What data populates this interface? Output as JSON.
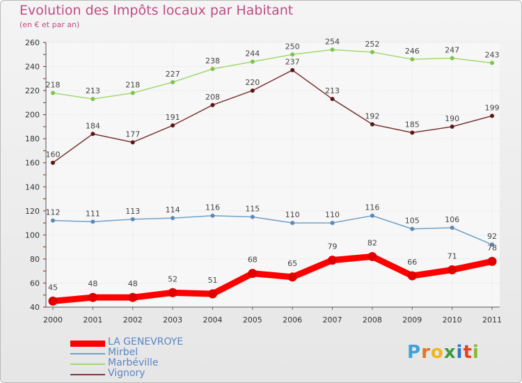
{
  "title": "Evolution des Impôts locaux par Habitant",
  "subtitle": "(en € et par an)",
  "logo": {
    "text": "Proxiti",
    "letters": [
      "P",
      "r",
      "o",
      "x",
      "i",
      "t",
      "i"
    ],
    "colors": [
      "#3aa3d9",
      "#e8741b",
      "#f2b51e",
      "#3c9a3f",
      "#2e77c4",
      "#e8401e",
      "#82b93a"
    ]
  },
  "chart_data": {
    "type": "line",
    "title": "Evolution des Impôts locaux par Habitant",
    "subtitle": "(en € et par an)",
    "xlabel": "",
    "ylabel": "",
    "categories": [
      "2000",
      "2001",
      "2002",
      "2003",
      "2004",
      "2005",
      "2006",
      "2007",
      "2008",
      "2009",
      "2010",
      "2011"
    ],
    "ylim": [
      40,
      260
    ],
    "yticks": [
      40,
      60,
      80,
      100,
      120,
      140,
      160,
      180,
      200,
      220,
      240,
      260
    ],
    "grid": true,
    "legend_position": "bottom-left",
    "series": [
      {
        "name": "LA GENEVROYE",
        "color": "#ff0000",
        "marker_color": "#e00000",
        "emphasis": true,
        "values": [
          45,
          48,
          48,
          52,
          51,
          68,
          65,
          79,
          82,
          66,
          71,
          78
        ]
      },
      {
        "name": "Mirbel",
        "color": "#6fa0c9",
        "marker_color": "#5c89b6",
        "emphasis": false,
        "values": [
          112,
          111,
          113,
          114,
          116,
          115,
          110,
          110,
          116,
          105,
          106,
          92
        ]
      },
      {
        "name": "Marbéville",
        "color": "#9fd96f",
        "marker_color": "#7ec449",
        "emphasis": false,
        "values": [
          218,
          213,
          218,
          227,
          238,
          244,
          250,
          254,
          252,
          246,
          247,
          243
        ]
      },
      {
        "name": "Vignory",
        "color": "#7a3535",
        "marker_color": "#5c1616",
        "emphasis": false,
        "values": [
          160,
          184,
          177,
          191,
          208,
          220,
          237,
          213,
          192,
          185,
          190,
          199
        ]
      }
    ]
  }
}
